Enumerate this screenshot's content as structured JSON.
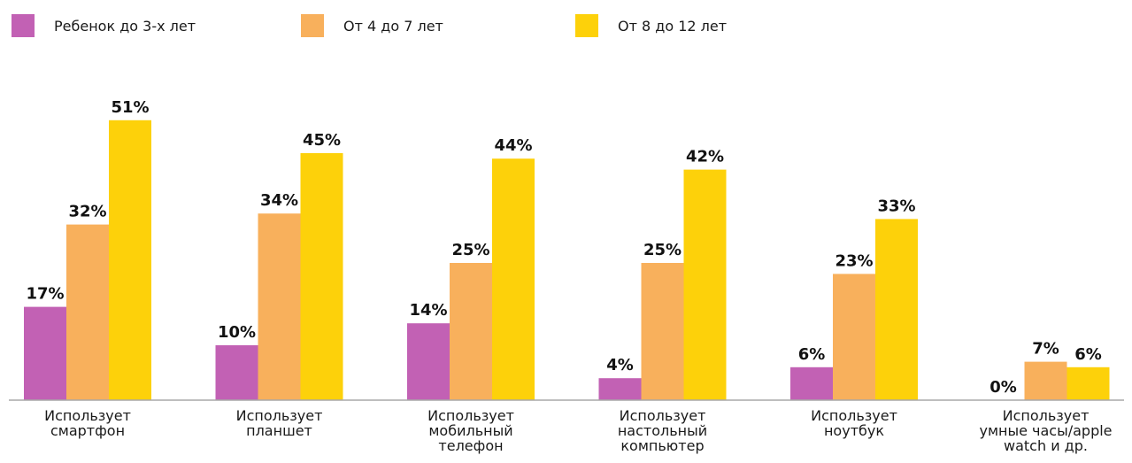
{
  "chart_data": {
    "type": "bar",
    "categories": [
      [
        "Использует",
        "смартфон"
      ],
      [
        "Использует",
        "планшет"
      ],
      [
        "Использует",
        "мобильный",
        "телефон"
      ],
      [
        "Использует",
        "настольный",
        "компьютер"
      ],
      [
        "Использует",
        "ноутбук"
      ],
      [
        "Использует",
        "умные часы/apple",
        "watch и др."
      ]
    ],
    "series": [
      {
        "name": "Ребенок до 3-х лет",
        "color": "#c261b4",
        "values": [
          17,
          10,
          14,
          4,
          6,
          0
        ],
        "labels": [
          "17%",
          "10%",
          "14%",
          "4%",
          "6%",
          "0%"
        ]
      },
      {
        "name": "От 4 до 7 лет",
        "color": "#f8b05c",
        "values": [
          32,
          34,
          25,
          25,
          23,
          7
        ],
        "labels": [
          "32%",
          "34%",
          "25%",
          "25%",
          "23%",
          "7%"
        ]
      },
      {
        "name": "От 8 до 12 лет",
        "color": "#fdd10a",
        "values": [
          51,
          45,
          44,
          42,
          33,
          6
        ],
        "labels": [
          "51%",
          "45%",
          "44%",
          "42%",
          "33%",
          "6%"
        ]
      }
    ],
    "title": "",
    "xlabel": "",
    "ylabel": "",
    "ylim": [
      0,
      53
    ],
    "grid": false,
    "legend_position": "top-left",
    "axis_color": "#a8a8a8"
  }
}
